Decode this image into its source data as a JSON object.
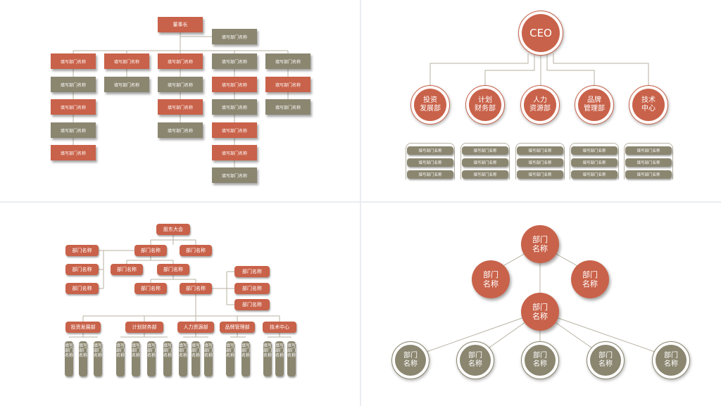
{
  "panel1": {
    "root": "董事长",
    "assistant": "填写部门名称",
    "columns": [
      [
        "填写部门名称",
        "填写部门名称",
        "填写部门名称",
        "填写部门名称",
        "填写部门名称"
      ],
      [
        "填写部门名称",
        "填写部门名称"
      ],
      [
        "填写部门名称",
        "填写部门名称",
        "填写部门名称",
        "填写部门名称"
      ],
      [
        "填写部门名称",
        "填写部门名称",
        "填写部门名称",
        "填写部门名称",
        "填写部门名称",
        "填写部门名称"
      ],
      [
        "填写部门名称",
        "填写部门名称",
        "填写部门名称"
      ]
    ]
  },
  "panel2": {
    "root": "CEO",
    "departments": [
      {
        "name": "投资\n发展部",
        "items": [
          "填写部门名称",
          "填写部门名称",
          "填写部门名称"
        ]
      },
      {
        "name": "计划\n财务部",
        "items": [
          "填写部门名称",
          "填写部门名称",
          "填写部门名称"
        ]
      },
      {
        "name": "人力\n资源部",
        "items": [
          "填写部门名称",
          "填写部门名称",
          "填写部门名称"
        ]
      },
      {
        "name": "品牌\n管理部",
        "items": [
          "填写部门名称",
          "填写部门名称",
          "填写部门名称"
        ]
      },
      {
        "name": "技术\n中心",
        "items": [
          "填写部门名称",
          "填写部门名称",
          "填写部门名称"
        ]
      }
    ]
  },
  "panel3": {
    "root": "股东大会",
    "left_boxes": [
      "部门名称",
      "部门名称",
      "部门名称"
    ],
    "level1": [
      "部门名称",
      "部门名称"
    ],
    "level2": [
      "部门名称",
      "部门名称"
    ],
    "level3": [
      "部门名称",
      "部门名称"
    ],
    "right_boxes": [
      "部门名称",
      "部门名称",
      "部门名称"
    ],
    "departments": [
      {
        "name": "投资发展部",
        "subs": [
          "填写部门名称",
          "填写部门名称",
          "填写部门名称"
        ]
      },
      {
        "name": "计划财务部",
        "subs": [
          "填写部门名称",
          "填写部门名称",
          "填写部门名称",
          "填写部门名称"
        ]
      },
      {
        "name": "人力资源部",
        "subs": [
          "填写部门名称",
          "填写部门名称",
          "填写部门名称"
        ]
      },
      {
        "name": "品牌管理部",
        "subs": [
          "填写部门名称",
          "填写部门名称"
        ]
      },
      {
        "name": "技术中心",
        "subs": [
          "填写部门名称",
          "填写部门名称",
          "填写部门名称"
        ]
      }
    ]
  },
  "panel4": {
    "top": "部门\n名称",
    "left": "部门\n名称",
    "right": "部门\n名称",
    "center": "部门\n名称",
    "bottom": [
      "部门\n名称",
      "部门\n名称",
      "部门\n名称",
      "部门\n名称",
      "部门\n名称"
    ]
  },
  "colors": {
    "accent": "#c9624a",
    "secondary": "#8b8670",
    "line": "#b7b2a2"
  }
}
